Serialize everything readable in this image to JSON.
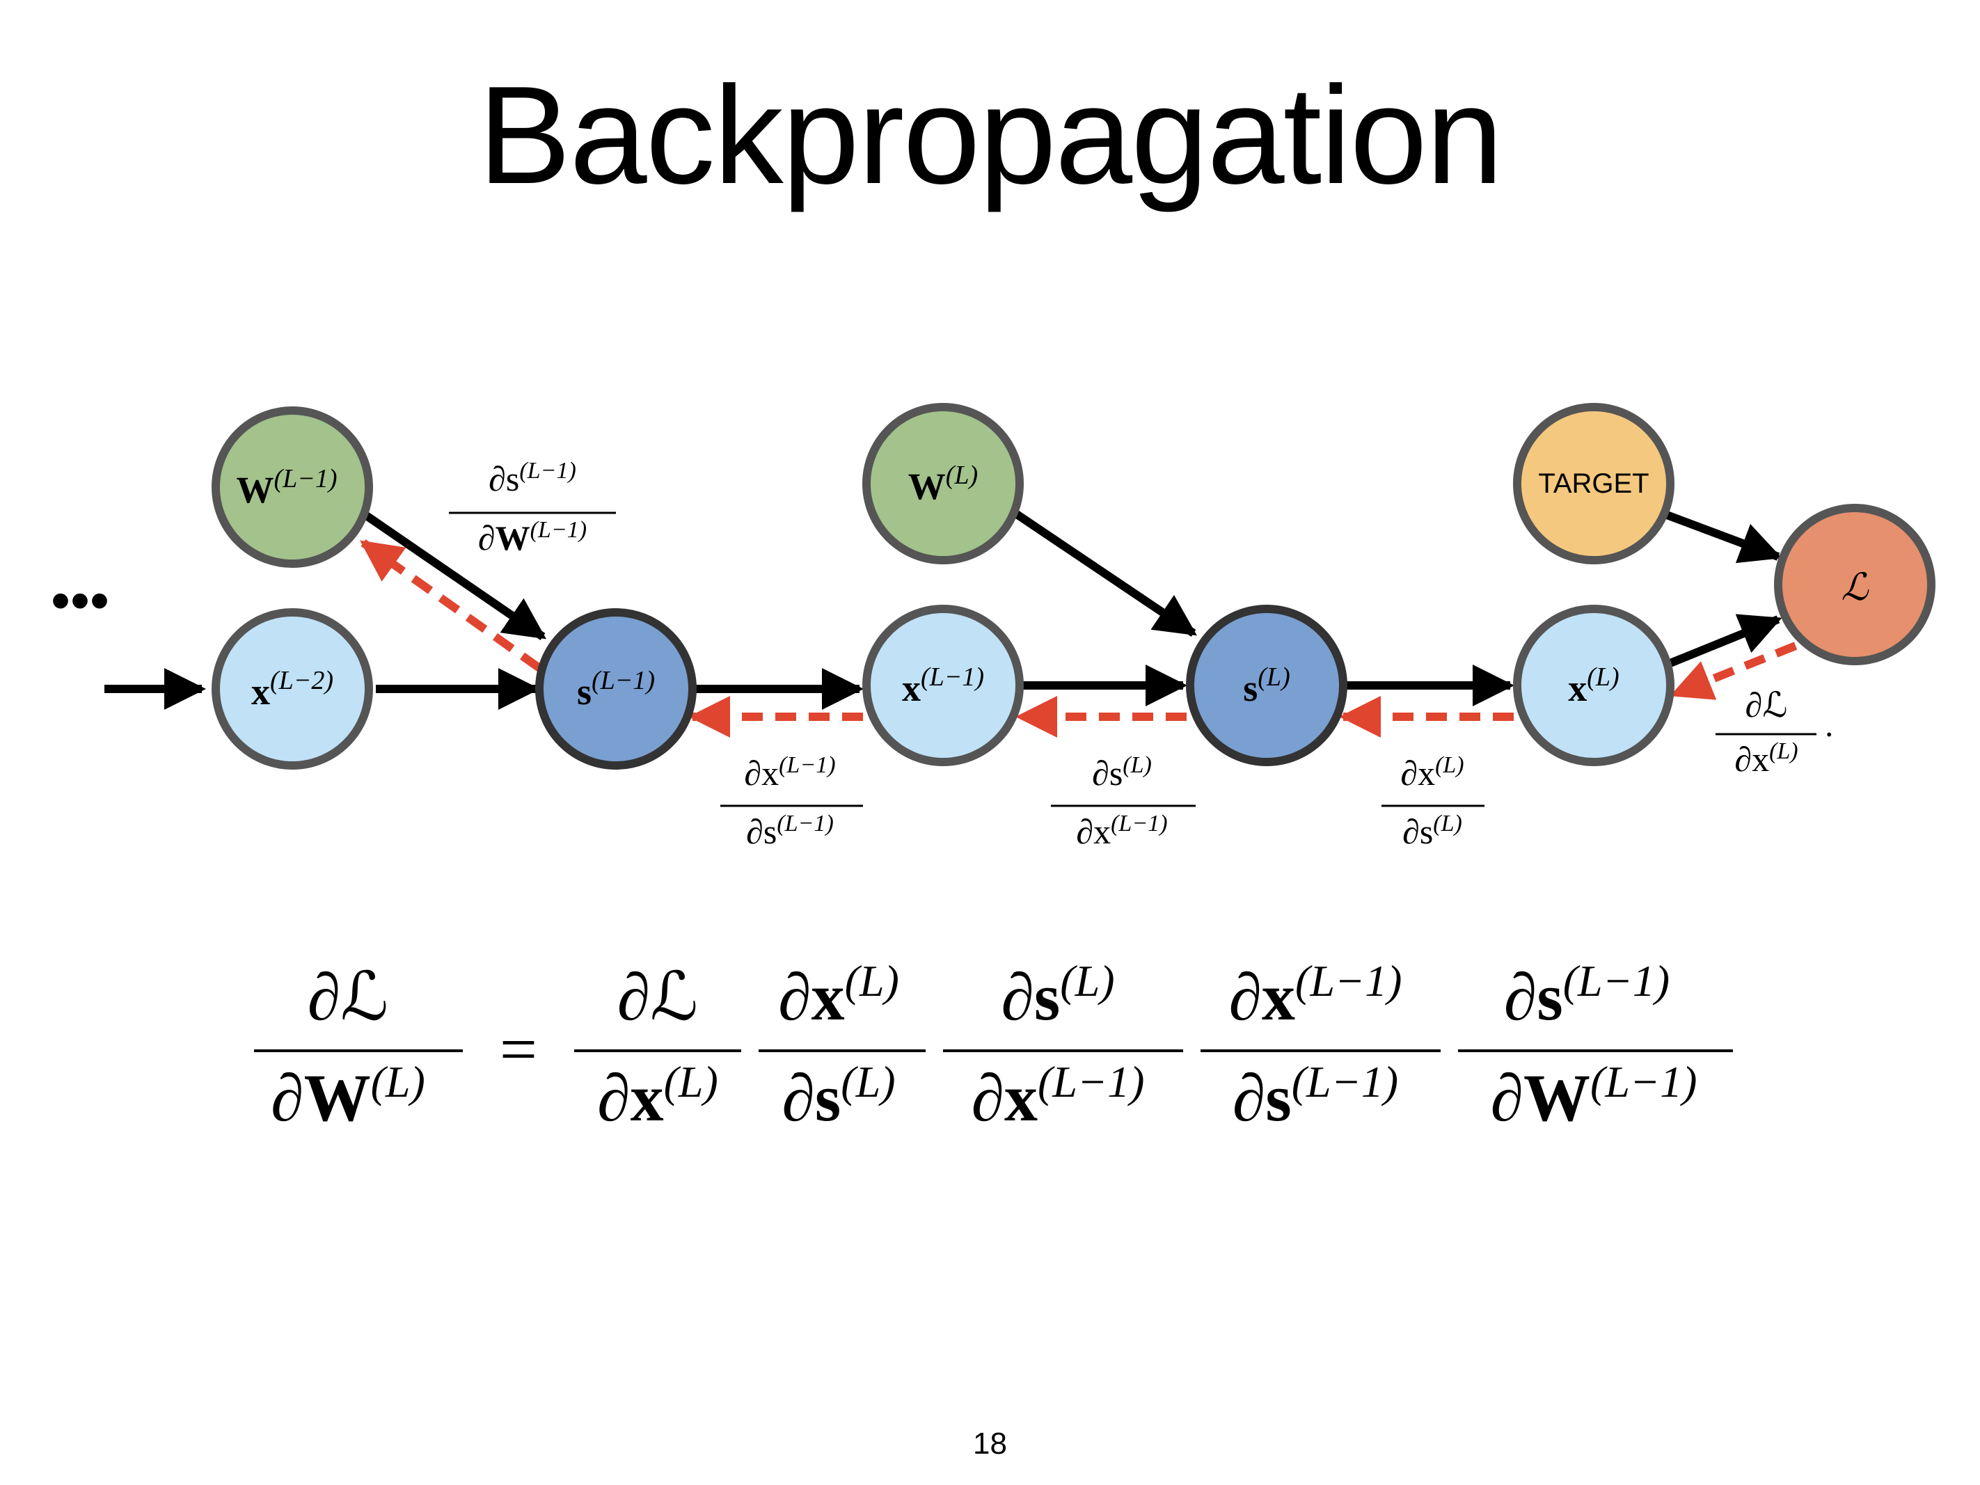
{
  "title": "Backpropagation",
  "page_number": "18",
  "ellipsis": "•••",
  "colors": {
    "weight_node": "#a3c28c",
    "input_node": "#c0e1f6",
    "sum_node": "#7a9fd1",
    "target_node": "#f4c87e",
    "loss_node": "#e6906e",
    "node_stroke": "#555555",
    "forward_arrow": "#000000",
    "backward_arrow": "#e0452f"
  },
  "nodes": {
    "w_lm1": {
      "main": "W",
      "sup": "(L−1)"
    },
    "x_lm2": {
      "main": "x",
      "sup": "(L−2)"
    },
    "s_lm1": {
      "main": "s",
      "sup": "(L−1)"
    },
    "w_l": {
      "main": "W",
      "sup": "(L)"
    },
    "x_lm1": {
      "main": "x",
      "sup": "(L−1)"
    },
    "s_l": {
      "main": "s",
      "sup": "(L)"
    },
    "target": {
      "main": "TARGET"
    },
    "x_l": {
      "main": "x",
      "sup": "(L)"
    },
    "loss": {
      "main": "ℒ"
    }
  },
  "edge_labels": {
    "ds_dw_lm1": {
      "num_main": "∂s",
      "num_sup": "(L−1)",
      "den_main": "∂W",
      "den_sup": "(L−1)"
    },
    "dx_ds_lm1": {
      "num_main": "∂x",
      "num_sup": "(L−1)",
      "den_main": "∂s",
      "den_sup": "(L−1)"
    },
    "ds_dx_lm1": {
      "num_main": "∂s",
      "num_sup": "(L)",
      "den_main": "∂x",
      "den_sup": "(L−1)"
    },
    "dx_ds_l": {
      "num_main": "∂x",
      "num_sup": "(L)",
      "den_main": "∂s",
      "den_sup": "(L)"
    },
    "dL_dx_l": {
      "num_main": "∂ℒ",
      "num_sup": "",
      "den_main": "∂x",
      "den_sup": "(L)",
      "trailing": "."
    }
  },
  "equation": {
    "lhs": {
      "num_main": "∂ℒ",
      "num_sup": "",
      "den_main": "∂W",
      "den_sup": "(L)"
    },
    "equals": "=",
    "terms": [
      {
        "num_main": "∂ℒ",
        "num_sup": "",
        "den_main": "∂x",
        "den_sup": "(L)"
      },
      {
        "num_main": "∂x",
        "num_sup": "(L)",
        "den_main": "∂s",
        "den_sup": "(L)"
      },
      {
        "num_main": "∂s",
        "num_sup": "(L)",
        "den_main": "∂x",
        "den_sup": "(L−1)"
      },
      {
        "num_main": "∂x",
        "num_sup": "(L−1)",
        "den_main": "∂s",
        "den_sup": "(L−1)"
      },
      {
        "num_main": "∂s",
        "num_sup": "(L−1)",
        "den_main": "∂W",
        "den_sup": "(L−1)"
      }
    ]
  }
}
